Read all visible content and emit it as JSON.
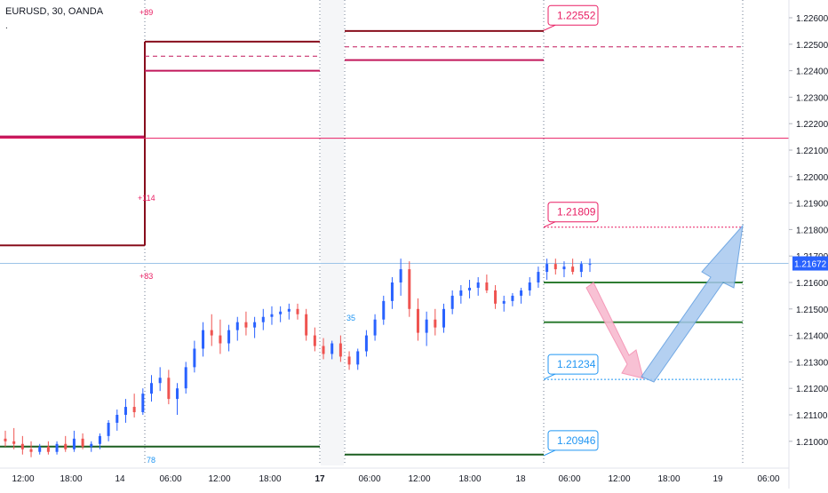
{
  "header": {
    "symbol_label": "EURUSD, 30, OANDA",
    "dot": "."
  },
  "chart_data": {
    "type": "candlestick",
    "title": "EURUSD, 30, OANDA",
    "ylim": [
      1.2092,
      1.2265
    ],
    "y_ticks": [
      "1.22600",
      "1.22500",
      "1.22400",
      "1.22300",
      "1.22200",
      "1.22100",
      "1.22000",
      "1.21900",
      "1.21800",
      "1.21700",
      "1.21600",
      "1.21500",
      "1.21400",
      "1.21300",
      "1.21200",
      "1.21100",
      "1.21000"
    ],
    "x_ticks": [
      "12:00",
      "18:00",
      "14",
      "06:00",
      "12:00",
      "18:00",
      "17",
      "06:00",
      "12:00",
      "18:00",
      "18",
      "06:00",
      "12:00",
      "18:00",
      "19",
      "06:00"
    ],
    "current_price": "1.21672",
    "price_callouts": [
      {
        "label": "1.22552",
        "value": 1.22552,
        "color": "#e91e63"
      },
      {
        "label": "1.21809",
        "value": 1.21809,
        "color": "#e91e63"
      },
      {
        "label": "1.21234",
        "value": 1.21234,
        "color": "#2196f3"
      },
      {
        "label": "1.20946",
        "value": 1.20946,
        "color": "#2196f3"
      }
    ],
    "level_annotations": [
      {
        "label": "+89",
        "color": "#e91e63"
      },
      {
        "label": "+114",
        "color": "#e91e63"
      },
      {
        "label": "+83",
        "color": "#e91e63"
      },
      {
        "label": "35",
        "color": "#2196f3"
      },
      {
        "label": "78",
        "color": "#2196f3"
      }
    ],
    "levels": [
      {
        "name": "day1-high",
        "value": 1.2215,
        "color": "#c2185b",
        "style": "solid"
      },
      {
        "name": "day1-low",
        "value": 1.2174,
        "color": "#880e1c",
        "style": "solid"
      },
      {
        "name": "day2-high",
        "value": 1.2251,
        "color": "#880e1c",
        "style": "solid"
      },
      {
        "name": "day2-mid",
        "value": 1.22455,
        "color": "#c2185b",
        "style": "dashed"
      },
      {
        "name": "day2-low",
        "value": 1.224,
        "color": "#c2185b",
        "style": "solid"
      },
      {
        "name": "day3-high",
        "value": 1.2255,
        "color": "#880e1c",
        "style": "solid"
      },
      {
        "name": "day3-mid",
        "value": 1.2249,
        "color": "#c2185b",
        "style": "dashed"
      },
      {
        "name": "day3-low",
        "value": 1.2244,
        "color": "#c2185b",
        "style": "solid"
      },
      {
        "name": "pink-hline",
        "value": 1.22145,
        "color": "#e91e63",
        "style": "solid"
      },
      {
        "name": "support-1",
        "value": 1.216,
        "color": "#2e7d32",
        "style": "solid"
      },
      {
        "name": "support-2",
        "value": 1.2145,
        "color": "#2e7d32",
        "style": "solid"
      },
      {
        "name": "green-low-1",
        "value": 1.2098,
        "color": "#1b5e20",
        "style": "solid"
      },
      {
        "name": "green-low-2",
        "value": 1.2095,
        "color": "#1b5e20",
        "style": "solid"
      }
    ],
    "candles_ohlc": [
      [
        1.2101,
        1.2104,
        1.2098,
        1.21
      ],
      [
        1.21,
        1.2105,
        1.2097,
        1.2099
      ],
      [
        1.2099,
        1.2102,
        1.2095,
        1.2097
      ],
      [
        1.2097,
        1.21,
        1.2094,
        1.2096
      ],
      [
        1.2096,
        1.2099,
        1.2095,
        1.2098
      ],
      [
        1.2098,
        1.21,
        1.2095,
        1.2096
      ],
      [
        1.2096,
        1.21,
        1.2095,
        1.2099
      ],
      [
        1.2099,
        1.2102,
        1.2096,
        1.2097
      ],
      [
        1.2097,
        1.2104,
        1.2096,
        1.2101
      ],
      [
        1.2101,
        1.2103,
        1.2097,
        1.2098
      ],
      [
        1.2098,
        1.21,
        1.2096,
        1.2099
      ],
      [
        1.2099,
        1.2103,
        1.2097,
        1.2102
      ],
      [
        1.2102,
        1.2108,
        1.21,
        1.2107
      ],
      [
        1.2107,
        1.2112,
        1.2104,
        1.211
      ],
      [
        1.211,
        1.2116,
        1.2107,
        1.2113
      ],
      [
        1.2113,
        1.2118,
        1.2109,
        1.2111
      ],
      [
        1.2111,
        1.212,
        1.211,
        1.2118
      ],
      [
        1.2118,
        1.2125,
        1.2115,
        1.2122
      ],
      [
        1.2122,
        1.2128,
        1.2119,
        1.2124
      ],
      [
        1.2124,
        1.2127,
        1.2114,
        1.2116
      ],
      [
        1.2116,
        1.2122,
        1.211,
        1.212
      ],
      [
        1.212,
        1.213,
        1.2118,
        1.2128
      ],
      [
        1.2128,
        1.2138,
        1.2126,
        1.2135
      ],
      [
        1.2135,
        1.2145,
        1.2132,
        1.2142
      ],
      [
        1.2142,
        1.2148,
        1.2136,
        1.214
      ],
      [
        1.214,
        1.2146,
        1.2133,
        1.2137
      ],
      [
        1.2137,
        1.2144,
        1.2134,
        1.2142
      ],
      [
        1.2142,
        1.2147,
        1.2138,
        1.2145
      ],
      [
        1.2145,
        1.2149,
        1.214,
        1.2143
      ],
      [
        1.2143,
        1.2147,
        1.2139,
        1.2145
      ],
      [
        1.2145,
        1.215,
        1.2142,
        1.2147
      ],
      [
        1.2147,
        1.2151,
        1.2144,
        1.2148
      ],
      [
        1.2148,
        1.2151,
        1.2145,
        1.2149
      ],
      [
        1.2149,
        1.2152,
        1.2146,
        1.215
      ],
      [
        1.215,
        1.2152,
        1.2146,
        1.2148
      ],
      [
        1.2148,
        1.215,
        1.2138,
        1.214
      ],
      [
        1.214,
        1.2143,
        1.2134,
        1.2136
      ],
      [
        1.2136,
        1.2139,
        1.2131,
        1.2133
      ],
      [
        1.2133,
        1.2138,
        1.2131,
        1.2137
      ],
      [
        1.2137,
        1.214,
        1.213,
        1.2132
      ],
      [
        1.2132,
        1.2134,
        1.2127,
        1.2129
      ],
      [
        1.2129,
        1.2135,
        1.2127,
        1.2134
      ],
      [
        1.2134,
        1.2142,
        1.2132,
        1.214
      ],
      [
        1.214,
        1.2148,
        1.2138,
        1.2146
      ],
      [
        1.2146,
        1.2155,
        1.2144,
        1.2153
      ],
      [
        1.2153,
        1.2162,
        1.215,
        1.216
      ],
      [
        1.216,
        1.2169,
        1.2155,
        1.2165
      ],
      [
        1.2165,
        1.2168,
        1.2147,
        1.215
      ],
      [
        1.215,
        1.2154,
        1.2138,
        1.2141
      ],
      [
        1.2141,
        1.2149,
        1.2136,
        1.2146
      ],
      [
        1.2146,
        1.215,
        1.214,
        1.2143
      ],
      [
        1.2143,
        1.2152,
        1.2141,
        1.215
      ],
      [
        1.215,
        1.2157,
        1.2148,
        1.2155
      ],
      [
        1.2155,
        1.2159,
        1.2152,
        1.2157
      ],
      [
        1.2157,
        1.2161,
        1.2154,
        1.2158
      ],
      [
        1.2158,
        1.2162,
        1.2155,
        1.216
      ],
      [
        1.216,
        1.2163,
        1.2156,
        1.2157
      ],
      [
        1.2157,
        1.2159,
        1.215,
        1.2152
      ],
      [
        1.2152,
        1.2155,
        1.2149,
        1.2153
      ],
      [
        1.2153,
        1.2156,
        1.2151,
        1.2155
      ],
      [
        1.2155,
        1.2158,
        1.2152,
        1.2157
      ],
      [
        1.2157,
        1.2162,
        1.2155,
        1.216
      ],
      [
        1.216,
        1.2166,
        1.2158,
        1.2164
      ],
      [
        1.2164,
        1.2169,
        1.2161,
        1.2167
      ],
      [
        1.2167,
        1.2169,
        1.2163,
        1.2165
      ],
      [
        1.2165,
        1.2168,
        1.2162,
        1.2166
      ],
      [
        1.2166,
        1.2169,
        1.2163,
        1.2164
      ],
      [
        1.2164,
        1.2168,
        1.2162,
        1.2167
      ],
      [
        1.2167,
        1.2169,
        1.2164,
        1.2167
      ]
    ],
    "colors": {
      "up": "#2962ff",
      "down": "#ef5350",
      "wick": "#5d6a80"
    }
  }
}
